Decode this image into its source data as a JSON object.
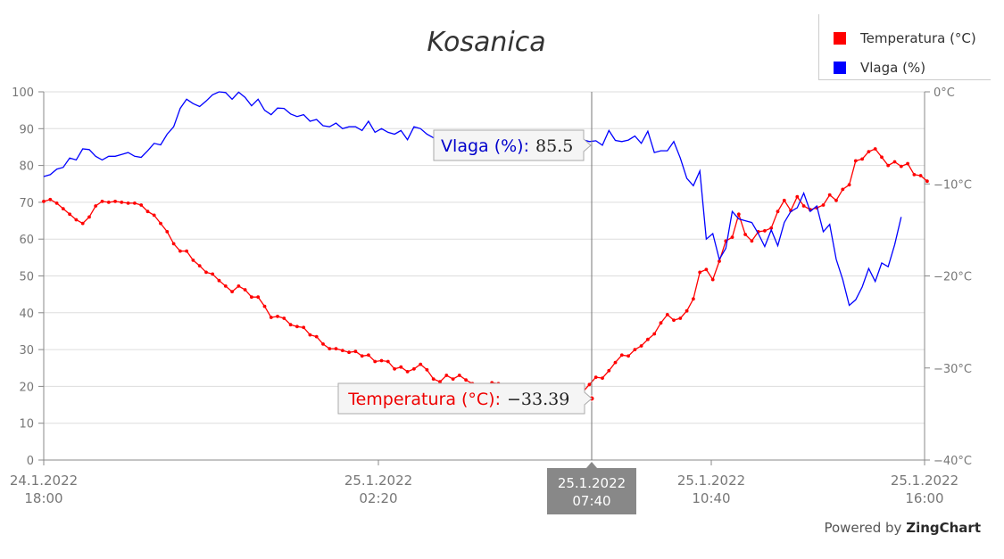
{
  "chart_data": {
    "type": "line",
    "title": "Kosanica",
    "x_axis": {
      "min": "24.1.2022 18:00",
      "max": "25.1.2022 16:00",
      "ticks": [
        {
          "date": "24.1.2022",
          "time": "18:00",
          "hours": 0
        },
        {
          "date": "25.1.2022",
          "time": "02:20",
          "hours": 8.333
        },
        {
          "date": "25.1.2022",
          "time": "10:40",
          "hours": 16.667
        },
        {
          "date": "25.1.2022",
          "time": "16:00",
          "hours": 22
        }
      ]
    },
    "y_left": {
      "min": 0,
      "max": 100,
      "ticks": [
        "0",
        "10",
        "20",
        "30",
        "40",
        "50",
        "60",
        "70",
        "80",
        "90",
        "100"
      ]
    },
    "y_right": {
      "min": -40,
      "max": 0,
      "ticks": [
        "-40°C",
        "-30°C",
        "-20°C",
        "-10°C",
        "0°C"
      ]
    },
    "grid": true,
    "legend_position": "top-right",
    "series": [
      {
        "name": "Temperatura (°C)",
        "axis": "right",
        "color": "#ff0000",
        "markers": true,
        "points": [
          [
            0,
            -11.9
          ],
          [
            0.25,
            -11.7
          ],
          [
            0.5,
            -12.1
          ],
          [
            0.75,
            -12.7
          ],
          [
            1,
            -13.3
          ],
          [
            1.25,
            -13.9
          ],
          [
            1.5,
            -14.3
          ],
          [
            1.75,
            -13.6
          ],
          [
            2,
            -12.4
          ],
          [
            2.25,
            -11.9
          ],
          [
            2.5,
            -12.0
          ],
          [
            2.75,
            -11.9
          ],
          [
            3,
            -12.0
          ],
          [
            3.25,
            -12.1
          ],
          [
            3.5,
            -12.1
          ],
          [
            3.75,
            -12.3
          ],
          [
            4,
            -13.0
          ],
          [
            4.25,
            -13.4
          ],
          [
            4.5,
            -14.3
          ],
          [
            4.75,
            -15.2
          ],
          [
            5,
            -16.5
          ],
          [
            5.25,
            -17.3
          ],
          [
            5.5,
            -17.3
          ],
          [
            5.75,
            -18.3
          ],
          [
            6,
            -18.9
          ],
          [
            6.25,
            -19.6
          ],
          [
            6.5,
            -19.8
          ],
          [
            6.75,
            -20.5
          ],
          [
            7,
            -21.1
          ],
          [
            7.25,
            -21.7
          ],
          [
            7.5,
            -21.1
          ],
          [
            7.75,
            -21.5
          ],
          [
            8,
            -22.3
          ],
          [
            8.25,
            -22.3
          ],
          [
            8.5,
            -23.3
          ],
          [
            8.75,
            -24.5
          ],
          [
            9,
            -24.4
          ],
          [
            9.25,
            -24.6
          ],
          [
            9.5,
            -25.3
          ],
          [
            9.75,
            -25.5
          ],
          [
            10,
            -25.6
          ],
          [
            10.25,
            -26.4
          ],
          [
            10.5,
            -26.6
          ],
          [
            10.75,
            -27.4
          ],
          [
            11,
            -27.9
          ],
          [
            11.25,
            -27.9
          ],
          [
            11.5,
            -28.1
          ],
          [
            11.75,
            -28.3
          ],
          [
            12,
            -28.2
          ],
          [
            12.25,
            -28.7
          ],
          [
            12.5,
            -28.6
          ],
          [
            12.75,
            -29.3
          ],
          [
            13,
            -29.2
          ],
          [
            13.25,
            -29.3
          ],
          [
            13.5,
            -30.1
          ],
          [
            13.75,
            -29.9
          ],
          [
            14,
            -30.4
          ],
          [
            14.25,
            -30.1
          ],
          [
            14.5,
            -29.6
          ],
          [
            14.75,
            -30.2
          ],
          [
            15,
            -31.2
          ],
          [
            15.25,
            -31.5
          ],
          [
            15.5,
            -30.8
          ],
          [
            15.75,
            -31.2
          ],
          [
            16,
            -30.8
          ],
          [
            16.25,
            -31.3
          ],
          [
            16.5,
            -31.7
          ],
          [
            16.75,
            -31.9
          ],
          [
            17,
            -32.2
          ],
          [
            17.25,
            -31.6
          ],
          [
            17.5,
            -31.7
          ],
          [
            17.75,
            -31.9
          ],
          [
            18,
            -32.4
          ],
          [
            18.25,
            -32.6
          ],
          [
            18.5,
            -32.6
          ],
          [
            18.75,
            -32.9
          ],
          [
            19,
            -32.7
          ],
          [
            19.25,
            -33.0
          ],
          [
            19.5,
            -33.1
          ],
          [
            19.75,
            -33.4
          ],
          [
            20,
            -32.8
          ],
          [
            20.25,
            -33.2
          ],
          [
            20.5,
            -33.39
          ],
          [
            20.75,
            -32.6
          ],
          [
            21,
            -31.8
          ],
          [
            21.25,
            -31.0
          ],
          [
            21.5,
            -31.1
          ],
          [
            21.75,
            -30.3
          ],
          [
            22,
            -29.4
          ],
          [
            22.25,
            -28.6
          ],
          [
            22.5,
            -28.7
          ],
          [
            22.75,
            -28.0
          ],
          [
            23,
            -27.6
          ],
          [
            23.25,
            -26.9
          ],
          [
            23.5,
            -26.3
          ],
          [
            23.75,
            -25.1
          ],
          [
            24,
            -24.2
          ],
          [
            24.25,
            -24.8
          ],
          [
            24.5,
            -24.6
          ],
          [
            24.75,
            -23.8
          ],
          [
            25,
            -22.5
          ],
          [
            25.25,
            -19.6
          ],
          [
            25.5,
            -19.3
          ],
          [
            25.75,
            -20.4
          ],
          [
            26,
            -18.4
          ],
          [
            26.25,
            -16.2
          ],
          [
            26.5,
            -15.8
          ],
          [
            26.75,
            -13.3
          ],
          [
            27,
            -15.5
          ],
          [
            27.25,
            -16.2
          ],
          [
            27.5,
            -15.2
          ],
          [
            27.75,
            -15.1
          ],
          [
            28,
            -14.8
          ],
          [
            28.25,
            -13.0
          ],
          [
            28.5,
            -11.8
          ],
          [
            28.75,
            -12.9
          ],
          [
            29,
            -11.4
          ],
          [
            29.25,
            -12.4
          ],
          [
            29.5,
            -12.8
          ],
          [
            29.75,
            -12.6
          ],
          [
            30,
            -12.3
          ],
          [
            30.25,
            -11.2
          ],
          [
            30.5,
            -11.8
          ],
          [
            30.75,
            -10.6
          ],
          [
            31,
            -10.1
          ],
          [
            31.25,
            -7.5
          ],
          [
            31.5,
            -7.3
          ],
          [
            31.75,
            -6.5
          ],
          [
            32,
            -6.2
          ],
          [
            32.25,
            -7.1
          ],
          [
            32.5,
            -8.0
          ],
          [
            32.75,
            -7.6
          ],
          [
            33,
            -8.1
          ],
          [
            33.25,
            -7.8
          ],
          [
            33.5,
            -9.0
          ],
          [
            33.75,
            -9.1
          ],
          [
            34,
            -9.7
          ]
        ]
      },
      {
        "name": "Vlaga (%)",
        "axis": "left",
        "color": "#0000ff",
        "markers": false,
        "points": [
          [
            0,
            77
          ],
          [
            0.25,
            77.5
          ],
          [
            0.5,
            79
          ],
          [
            0.75,
            79.5
          ],
          [
            1,
            82
          ],
          [
            1.25,
            81.5
          ],
          [
            1.5,
            84.5
          ],
          [
            1.75,
            84.3
          ],
          [
            2,
            82.5
          ],
          [
            2.25,
            81.5
          ],
          [
            2.5,
            82.5
          ],
          [
            2.75,
            82.5
          ],
          [
            3,
            83
          ],
          [
            3.25,
            83.5
          ],
          [
            3.5,
            82.5
          ],
          [
            3.75,
            82.2
          ],
          [
            4,
            84
          ],
          [
            4.25,
            86
          ],
          [
            4.5,
            85.6
          ],
          [
            4.75,
            88.5
          ],
          [
            5,
            90.5
          ],
          [
            5.25,
            95.5
          ],
          [
            5.5,
            98
          ],
          [
            5.75,
            96.8
          ],
          [
            6,
            96
          ],
          [
            6.25,
            97.5
          ],
          [
            6.5,
            99.2
          ],
          [
            6.75,
            100
          ],
          [
            7,
            99.8
          ],
          [
            7.25,
            98
          ],
          [
            7.5,
            99.9
          ],
          [
            7.75,
            98.5
          ],
          [
            8,
            96.2
          ],
          [
            8.25,
            98
          ],
          [
            8.5,
            95
          ],
          [
            8.75,
            93.8
          ],
          [
            9,
            95.6
          ],
          [
            9.25,
            95.5
          ],
          [
            9.5,
            94
          ],
          [
            9.75,
            93.3
          ],
          [
            10,
            93.8
          ],
          [
            10.25,
            92
          ],
          [
            10.5,
            92.5
          ],
          [
            10.75,
            90.8
          ],
          [
            11,
            90.5
          ],
          [
            11.25,
            91.5
          ],
          [
            11.5,
            90
          ],
          [
            11.75,
            90.5
          ],
          [
            12,
            90.5
          ],
          [
            12.25,
            89.5
          ],
          [
            12.5,
            92
          ],
          [
            12.75,
            89
          ],
          [
            13,
            90
          ],
          [
            13.25,
            89
          ],
          [
            13.5,
            88.5
          ],
          [
            13.75,
            89.5
          ],
          [
            14,
            87
          ],
          [
            14.25,
            90.5
          ],
          [
            14.5,
            90
          ],
          [
            14.75,
            88.5
          ],
          [
            15,
            87.5
          ],
          [
            15.25,
            86.5
          ],
          [
            15.5,
            87
          ],
          [
            15.75,
            86.5
          ],
          [
            16,
            85.5
          ],
          [
            16.25,
            86
          ],
          [
            16.5,
            85.7
          ],
          [
            16.75,
            86
          ],
          [
            17,
            85.3
          ],
          [
            17.25,
            86.5
          ],
          [
            17.5,
            85.8
          ],
          [
            17.75,
            85
          ],
          [
            18,
            85.5
          ],
          [
            18.25,
            86.3
          ],
          [
            18.5,
            85.9
          ],
          [
            18.75,
            85.2
          ],
          [
            19,
            85.8
          ],
          [
            19.25,
            86.2
          ],
          [
            19.5,
            85.5
          ],
          [
            19.75,
            85.9
          ],
          [
            20,
            86.2
          ],
          [
            20.25,
            85.7
          ],
          [
            20.5,
            85.5
          ],
          [
            20.75,
            87
          ],
          [
            21,
            86.5
          ],
          [
            21.25,
            86.7
          ],
          [
            21.5,
            85.5
          ],
          [
            21.75,
            89.5
          ],
          [
            22,
            86.8
          ],
          [
            22.25,
            86.5
          ],
          [
            22.5,
            86.9
          ],
          [
            22.75,
            88
          ],
          [
            23,
            86
          ],
          [
            23.25,
            89.3
          ],
          [
            23.5,
            83.5
          ],
          [
            23.75,
            84
          ],
          [
            24,
            84
          ],
          [
            24.25,
            86.5
          ],
          [
            24.5,
            82
          ],
          [
            24.75,
            76.5
          ],
          [
            25,
            74.5
          ],
          [
            25.25,
            78.5
          ],
          [
            25.5,
            60
          ],
          [
            25.75,
            61.5
          ],
          [
            26,
            54.5
          ],
          [
            26.25,
            57.5
          ],
          [
            26.5,
            67.5
          ],
          [
            26.75,
            65.5
          ],
          [
            27,
            65
          ],
          [
            27.25,
            64.5
          ],
          [
            27.5,
            61.5
          ],
          [
            27.75,
            58
          ],
          [
            28,
            62.5
          ],
          [
            28.25,
            58.2
          ],
          [
            28.5,
            64.5
          ],
          [
            28.75,
            67.5
          ],
          [
            29,
            68.5
          ],
          [
            29.25,
            72.5
          ],
          [
            29.5,
            67.5
          ],
          [
            29.75,
            69
          ],
          [
            30,
            62
          ],
          [
            30.25,
            64
          ],
          [
            30.5,
            54.5
          ],
          [
            30.75,
            49
          ],
          [
            31,
            42
          ],
          [
            31.25,
            43.5
          ],
          [
            31.5,
            47
          ],
          [
            31.75,
            52
          ],
          [
            32,
            48.5
          ],
          [
            32.25,
            53.5
          ],
          [
            32.5,
            52.5
          ],
          [
            32.75,
            58.5
          ],
          [
            33,
            66
          ]
        ]
      }
    ],
    "tooltips": {
      "vlaga_label": "Vlaga (%):",
      "vlaga_value": "85.5",
      "temp_label": "Temperatura (°C):",
      "temp_value": "-33.39",
      "crosshair_date": "25.1.2022",
      "crosshair_time": "07:40"
    }
  },
  "legend": {
    "items": [
      {
        "label": "Temperatura (°C)",
        "color": "#ff0000"
      },
      {
        "label": "Vlaga (%)",
        "color": "#0000ff"
      }
    ]
  },
  "footer": {
    "powered_prefix": "Powered by",
    "brand": "ZingChart"
  }
}
